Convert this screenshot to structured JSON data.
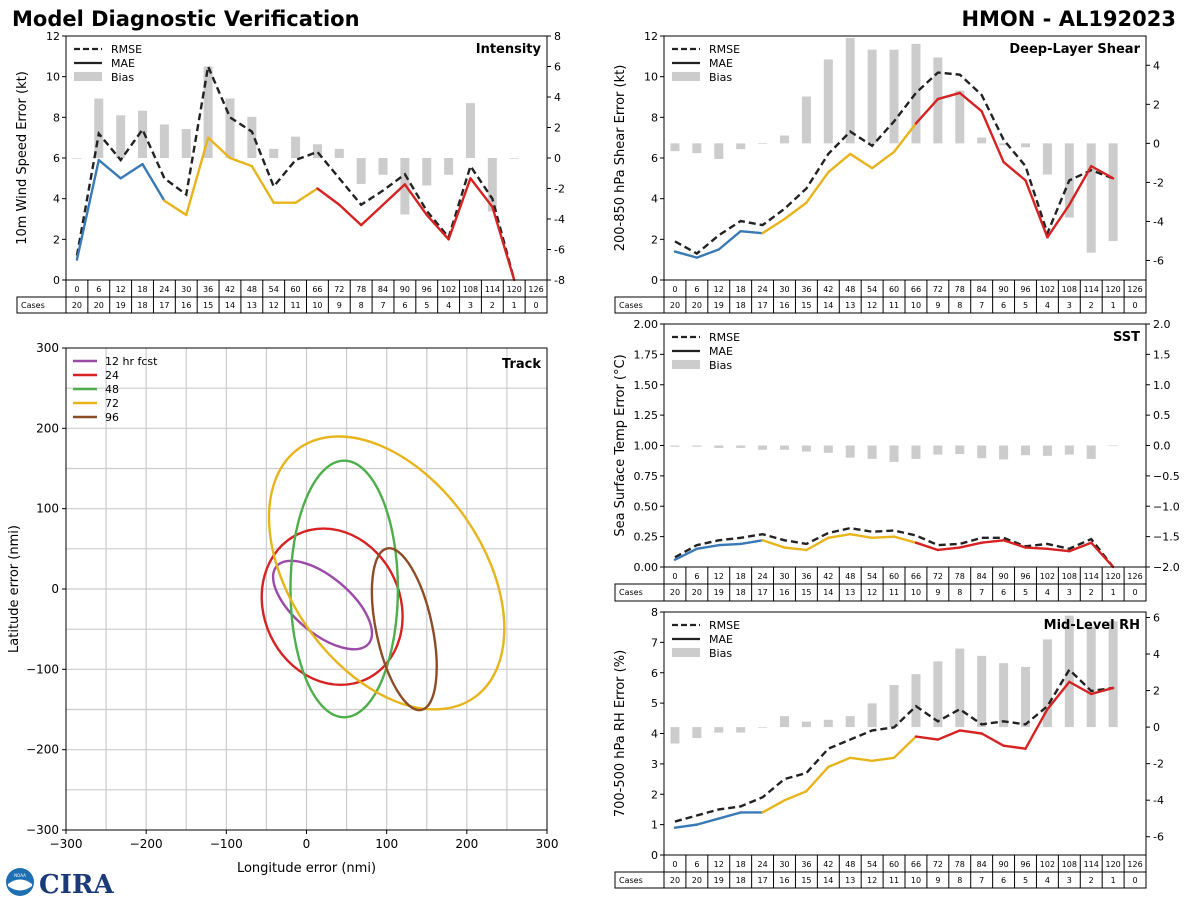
{
  "header": {
    "title": "Model Diagnostic Verification",
    "storm_label": "HMON - AL192023"
  },
  "colors": {
    "rmse": "#222222",
    "bias": "#cccccc",
    "seg_blue": "#3a7ab4",
    "seg_yellow": "#e8b41c",
    "seg_red": "#d62222",
    "track_12": "#9b4aa6",
    "track_24": "#d62222",
    "track_48": "#4eae4b",
    "track_72": "#e8b41c",
    "track_96": "#8b4c26"
  },
  "legend_labels": {
    "rmse": "RMSE",
    "mae": "MAE",
    "bias": "Bias"
  },
  "cases_row": {
    "label": "Cases",
    "hours": [
      "0",
      "6",
      "12",
      "18",
      "24",
      "30",
      "36",
      "42",
      "48",
      "54",
      "60",
      "66",
      "72",
      "78",
      "84",
      "90",
      "96",
      "102",
      "108",
      "114",
      "120",
      "126"
    ],
    "counts": [
      "20",
      "20",
      "19",
      "18",
      "17",
      "16",
      "15",
      "14",
      "13",
      "12",
      "11",
      "10",
      "9",
      "8",
      "7",
      "6",
      "5",
      "4",
      "3",
      "2",
      "1",
      "0"
    ]
  },
  "chart_data": [
    {
      "id": "intensity",
      "type": "line",
      "title": "Intensity",
      "ylabel": "10m Wind Speed Error (kt)",
      "ylim": [
        0,
        12
      ],
      "yticks": [
        0,
        2,
        4,
        6,
        8,
        10,
        12
      ],
      "y2lim": [
        -8,
        8
      ],
      "y2ticks": [
        -8,
        -6,
        -4,
        -2,
        0,
        2,
        4,
        6,
        8
      ],
      "x": [
        0,
        6,
        12,
        18,
        24,
        30,
        36,
        42,
        48,
        54,
        60,
        66,
        72,
        78,
        84,
        90,
        96,
        102,
        108,
        114,
        120,
        126
      ],
      "rmse": [
        1.2,
        7.2,
        5.9,
        7.4,
        5.0,
        4.2,
        10.5,
        8.0,
        7.3,
        4.6,
        5.9,
        6.3,
        5.0,
        3.7,
        4.4,
        5.2,
        3.4,
        2.1,
        5.6,
        4.0,
        0.0,
        null
      ],
      "mae": [
        1.0,
        5.9,
        5.0,
        5.7,
        3.9,
        3.2,
        7.0,
        6.0,
        5.6,
        3.8,
        3.8,
        4.5,
        3.7,
        2.7,
        3.7,
        4.7,
        3.2,
        2.0,
        5.0,
        3.6,
        0.0,
        null
      ],
      "bias": [
        0.0,
        3.9,
        2.8,
        3.1,
        2.2,
        1.9,
        6.0,
        3.9,
        2.7,
        0.6,
        1.4,
        0.9,
        0.6,
        -1.7,
        -1.1,
        -3.7,
        -1.8,
        -1.1,
        3.6,
        -3.5,
        0.0,
        null
      ]
    },
    {
      "id": "shear",
      "type": "line",
      "title": "Deep-Layer Shear",
      "ylabel": "200-850 hPa Shear Error (kt)",
      "ylim": [
        0,
        12
      ],
      "yticks": [
        0,
        2,
        4,
        6,
        8,
        10,
        12
      ],
      "y2lim": [
        -7,
        5.5
      ],
      "y2ticks": [
        -6,
        -4,
        -2,
        0,
        2,
        4
      ],
      "x": [
        0,
        6,
        12,
        18,
        24,
        30,
        36,
        42,
        48,
        54,
        60,
        66,
        72,
        78,
        84,
        90,
        96,
        102,
        108,
        114,
        120,
        126
      ],
      "rmse": [
        1.9,
        1.3,
        2.2,
        2.9,
        2.7,
        3.5,
        4.5,
        6.2,
        7.3,
        6.6,
        7.8,
        9.2,
        10.2,
        10.1,
        9.1,
        6.9,
        5.6,
        2.3,
        4.9,
        5.4,
        5.0,
        null
      ],
      "mae": [
        1.4,
        1.1,
        1.5,
        2.4,
        2.3,
        3.0,
        3.8,
        5.3,
        6.2,
        5.5,
        6.3,
        7.7,
        8.9,
        9.2,
        8.3,
        5.8,
        4.9,
        2.1,
        3.7,
        5.6,
        5.0,
        null
      ],
      "bias": [
        -0.4,
        -0.5,
        -0.8,
        -0.3,
        0.0,
        0.4,
        2.4,
        4.3,
        5.4,
        4.8,
        4.8,
        5.1,
        4.4,
        2.7,
        0.3,
        -0.1,
        -0.2,
        -1.6,
        -3.8,
        -5.6,
        -5.0,
        null
      ]
    },
    {
      "id": "sst",
      "type": "line",
      "title": "SST",
      "ylabel": "Sea Surface Temp Error (°C)",
      "ylim": [
        0,
        2.0
      ],
      "yticks": [
        "0.00",
        "0.25",
        "0.50",
        "0.75",
        "1.00",
        "1.25",
        "1.50",
        "1.75",
        "2.00"
      ],
      "y2lim": [
        -2.0,
        2.0
      ],
      "y2ticks": [
        "−2.0",
        "−1.5",
        "−1.0",
        "−0.5",
        "0.0",
        "0.5",
        "1.0",
        "1.5",
        "2.0"
      ],
      "x": [
        0,
        6,
        12,
        18,
        24,
        30,
        36,
        42,
        48,
        54,
        60,
        66,
        72,
        78,
        84,
        90,
        96,
        102,
        108,
        114,
        120,
        126
      ],
      "rmse": [
        0.08,
        0.18,
        0.22,
        0.24,
        0.27,
        0.22,
        0.19,
        0.28,
        0.32,
        0.29,
        0.3,
        0.26,
        0.18,
        0.19,
        0.24,
        0.24,
        0.17,
        0.19,
        0.15,
        0.23,
        0.0,
        null
      ],
      "mae": [
        0.06,
        0.15,
        0.18,
        0.19,
        0.22,
        0.16,
        0.14,
        0.24,
        0.27,
        0.24,
        0.25,
        0.2,
        0.14,
        0.16,
        0.2,
        0.22,
        0.16,
        0.15,
        0.13,
        0.2,
        0.0,
        null
      ],
      "bias": [
        -0.02,
        -0.02,
        -0.04,
        -0.04,
        -0.07,
        -0.07,
        -0.1,
        -0.12,
        -0.2,
        -0.22,
        -0.27,
        -0.22,
        -0.15,
        -0.14,
        -0.21,
        -0.23,
        -0.16,
        -0.17,
        -0.15,
        -0.22,
        0.0,
        null
      ]
    },
    {
      "id": "rh",
      "type": "line",
      "title": "Mid-Level RH",
      "ylabel": "700-500 hPa RH Error (%)",
      "ylim": [
        0,
        8
      ],
      "yticks": [
        0,
        1,
        2,
        3,
        4,
        5,
        6,
        7,
        8
      ],
      "y2lim": [
        -7,
        6.3
      ],
      "y2ticks": [
        -6,
        -4,
        -2,
        0,
        2,
        4,
        6
      ],
      "x": [
        0,
        6,
        12,
        18,
        24,
        30,
        36,
        42,
        48,
        54,
        60,
        66,
        72,
        78,
        84,
        90,
        96,
        102,
        108,
        114,
        120,
        126
      ],
      "rmse": [
        1.1,
        1.3,
        1.5,
        1.6,
        1.9,
        2.5,
        2.7,
        3.5,
        3.8,
        4.1,
        4.2,
        4.9,
        4.4,
        4.8,
        4.3,
        4.4,
        4.3,
        4.9,
        6.1,
        5.4,
        5.5,
        null
      ],
      "mae": [
        0.9,
        1.0,
        1.2,
        1.4,
        1.4,
        1.8,
        2.1,
        2.9,
        3.2,
        3.1,
        3.2,
        3.9,
        3.8,
        4.1,
        4.0,
        3.6,
        3.5,
        4.8,
        5.7,
        5.3,
        5.5,
        null
      ],
      "bias": [
        -0.9,
        -0.6,
        -0.3,
        -0.3,
        0.0,
        0.6,
        0.3,
        0.4,
        0.6,
        1.3,
        2.3,
        2.9,
        3.6,
        4.3,
        3.9,
        3.5,
        3.3,
        4.8,
        6.1,
        5.5,
        5.8,
        null
      ]
    },
    {
      "id": "track",
      "type": "scatter",
      "title": "Track",
      "xlabel": "Longitude error (nmi)",
      "ylabel": "Latitude error (nmi)",
      "xlim": [
        -300,
        300
      ],
      "ylim": [
        -300,
        300
      ],
      "ticks": [
        "−300",
        "−200",
        "−100",
        "0",
        "100",
        "200",
        "300"
      ],
      "ellipses": [
        {
          "label": "12 hr fcst",
          "cx": 20,
          "cy": -20,
          "rx": 35,
          "ry": 75,
          "angle_deg": -50
        },
        {
          "label": "24",
          "cx": 32,
          "cy": -22,
          "rx": 85,
          "ry": 100,
          "angle_deg": -25
        },
        {
          "label": "48",
          "cx": 47,
          "cy": 0,
          "rx": 67,
          "ry": 160,
          "angle_deg": 0
        },
        {
          "label": "72",
          "cx": 100,
          "cy": 20,
          "rx": 120,
          "ry": 190,
          "angle_deg": -35
        },
        {
          "label": "96",
          "cx": 122,
          "cy": -50,
          "rx": 35,
          "ry": 103,
          "angle_deg": -12
        }
      ]
    }
  ],
  "logos": {
    "noaa": "NOAA",
    "cira": "CIRA"
  }
}
